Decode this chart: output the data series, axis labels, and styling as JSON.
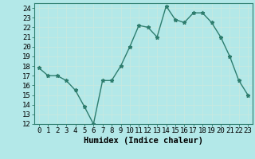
{
  "x": [
    0,
    1,
    2,
    3,
    4,
    5,
    6,
    7,
    8,
    9,
    10,
    11,
    12,
    13,
    14,
    15,
    16,
    17,
    18,
    19,
    20,
    21,
    22,
    23
  ],
  "y": [
    17.8,
    17.0,
    17.0,
    16.5,
    15.5,
    13.8,
    12.0,
    16.5,
    16.5,
    18.0,
    20.0,
    22.2,
    22.0,
    21.0,
    24.2,
    22.8,
    22.5,
    23.5,
    23.5,
    22.5,
    21.0,
    19.0,
    16.5,
    15.0
  ],
  "line_color": "#2e7d6e",
  "marker": "*",
  "marker_size": 3.5,
  "background_color": "#b3e8e8",
  "grid_color": "#d0f0f0",
  "xlabel": "Humidex (Indice chaleur)",
  "xlim": [
    -0.5,
    23.5
  ],
  "ylim": [
    12,
    24.5
  ],
  "yticks": [
    12,
    13,
    14,
    15,
    16,
    17,
    18,
    19,
    20,
    21,
    22,
    23,
    24
  ],
  "xtick_labels": [
    "0",
    "1",
    "2",
    "3",
    "4",
    "5",
    "6",
    "7",
    "8",
    "9",
    "10",
    "11",
    "12",
    "13",
    "14",
    "15",
    "16",
    "17",
    "18",
    "19",
    "20",
    "21",
    "22",
    "23"
  ],
  "xlabel_fontsize": 7.5,
  "tick_fontsize": 6.5,
  "line_width": 1.0
}
